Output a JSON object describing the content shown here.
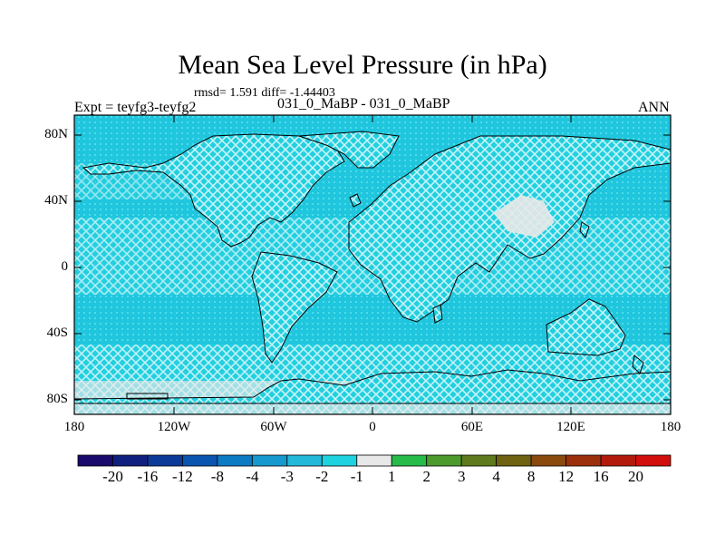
{
  "title": "Mean Sea Level Pressure (in hPa)",
  "stats": "rmsd= 1.591 diff= -1.44403",
  "experiment": "Expt = teyfg3-teyfg2",
  "cases": "031_0_MaBP - 031_0_MaBP",
  "season": "ANN",
  "lat_labels": [
    "80N",
    "40N",
    "0",
    "40S",
    "80S"
  ],
  "lon_labels": [
    "180",
    "120W",
    "60W",
    "0",
    "60E",
    "120E",
    "180"
  ],
  "colorbar": {
    "colors": [
      "#1a0a6b",
      "#10207f",
      "#0b3a99",
      "#0a55b0",
      "#0d7ac4",
      "#1599cf",
      "#22b8da",
      "#1fd2e0",
      "#e8e8e8",
      "#27bb4a",
      "#4d9a2c",
      "#5f7a1c",
      "#6f6210",
      "#8a4a0c",
      "#9c300c",
      "#b21a0c",
      "#d20f0c"
    ],
    "labels": [
      "-20",
      "-16",
      "-12",
      "-8",
      "-4",
      "-3",
      "-2",
      "-1",
      "1",
      "2",
      "3",
      "4",
      "8",
      "12",
      "16",
      "20"
    ]
  },
  "colors": {
    "ocean_fill": "#22d0e0",
    "hatch": "#ffffff",
    "coast": "#000000"
  }
}
